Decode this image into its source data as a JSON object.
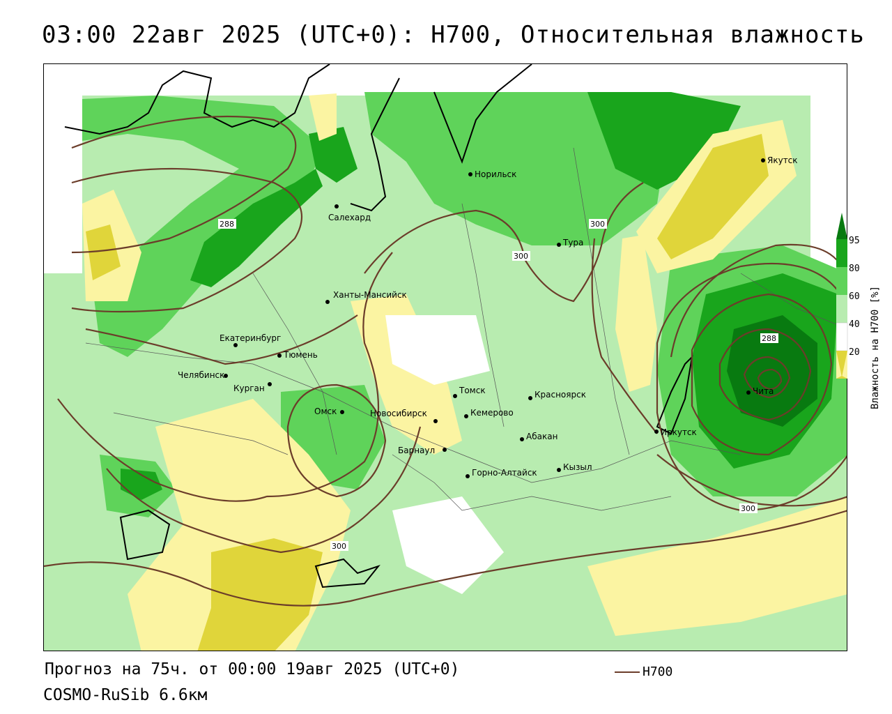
{
  "title": "03:00 22авг 2025 (UTC+0): H700, Относительная влажность",
  "footer": {
    "forecast": "Прогноз на 75ч. от 00:00 19авг 2025 (UTC+0)",
    "model": "COSMO-RuSib 6.6км",
    "contour_legend": "H700"
  },
  "colorbar": {
    "label": "Влажность на H700 [%]",
    "ticks": [
      "95",
      "80",
      "60",
      "40",
      "20"
    ],
    "colors": {
      "c20": "#e0d53a",
      "c30": "#fbf4a2",
      "c40": "#ffffff",
      "c60": "#b8ecb0",
      "c80": "#5fd35a",
      "c95": "#19a51c",
      "c100": "#087a10"
    }
  },
  "contour_color": "#6b3d2a",
  "contour_labels": [
    "288",
    "300",
    "300",
    "300",
    "288",
    "300"
  ],
  "cities": [
    {
      "name": "Норильск"
    },
    {
      "name": "Якутск"
    },
    {
      "name": "Салехард"
    },
    {
      "name": "Тура"
    },
    {
      "name": "Ханты-Мансийск"
    },
    {
      "name": "Екатеринбург"
    },
    {
      "name": "Тюмень"
    },
    {
      "name": "Челябинск"
    },
    {
      "name": "Курган"
    },
    {
      "name": "Омск"
    },
    {
      "name": "Новосибирск"
    },
    {
      "name": "Томск"
    },
    {
      "name": "Кемерово"
    },
    {
      "name": "Красноярск"
    },
    {
      "name": "Барнаул"
    },
    {
      "name": "Абакан"
    },
    {
      "name": "Горно-Алтайск"
    },
    {
      "name": "Кызыл"
    },
    {
      "name": "Иркутск"
    },
    {
      "name": "Чита"
    }
  ]
}
